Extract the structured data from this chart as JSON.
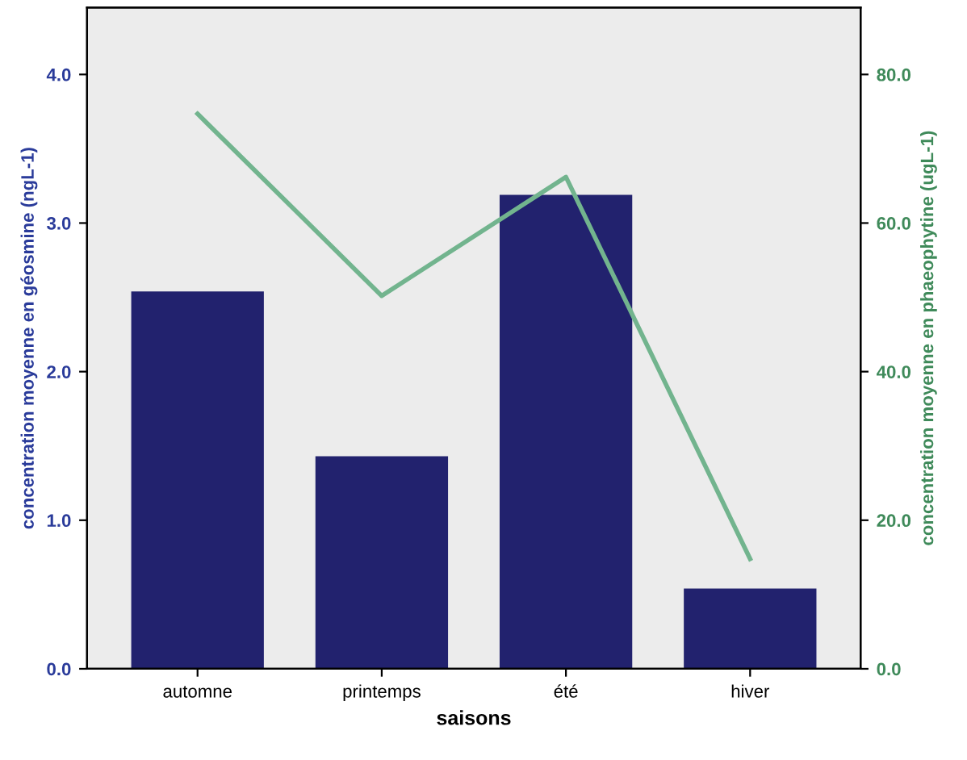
{
  "chart_data": {
    "type": "bar",
    "xlabel": "saisons",
    "ylabel": "concentration moyenne en géosmine (ngL-1)",
    "y2label": "concentration moyenne en phaeophytine (ugL-1)",
    "categories": [
      "automne",
      "printemps",
      "été",
      "hiver"
    ],
    "series": [
      {
        "color": "#22226e",
        "values": [
          2.54,
          1.43,
          3.19,
          0.54
        ]
      },
      {
        "type": "line",
        "axis": "y2",
        "color": "#72b48e",
        "values": [
          74.7,
          50.2,
          66.2,
          14.8
        ]
      }
    ],
    "ylim": [
      0,
      4.45
    ],
    "yticks": [
      {
        "value": 0,
        "label": "0.0"
      },
      {
        "value": 1,
        "label": "1.0"
      },
      {
        "value": 2,
        "label": "2.0"
      },
      {
        "value": 3,
        "label": "3.0"
      },
      {
        "value": 4,
        "label": "4.0"
      }
    ],
    "y2lim": [
      0,
      89
    ],
    "y2ticks": [
      {
        "value": 0,
        "label": "0.0"
      },
      {
        "value": 20,
        "label": "20.0"
      },
      {
        "value": 40,
        "label": "40.0"
      },
      {
        "value": 60,
        "label": "60.0"
      },
      {
        "value": 80,
        "label": "80.0"
      }
    ],
    "grid": false,
    "legend": false
  }
}
